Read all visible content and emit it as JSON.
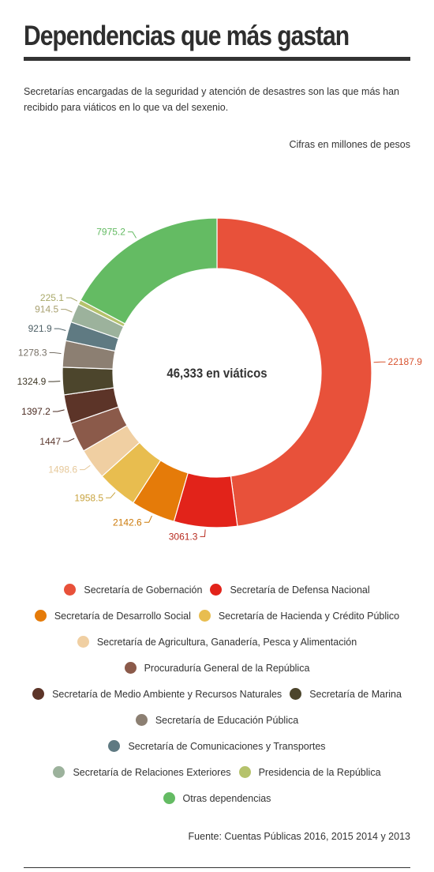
{
  "header": {
    "title": "Dependencias que más gastan",
    "subtitle": "Secretarías encargadas de la seguridad y atención de desastres son las que más han recibido para viáticos en lo que va del sexenio.",
    "units": "Cifras en millones de pesos"
  },
  "chart_data": {
    "type": "pie",
    "variant": "donut",
    "center_label": "46,333 en viáticos",
    "labels_on_outside": true,
    "legend_position": "bottom",
    "series": [
      {
        "name": "Secretaría de Gobernación",
        "value": 22187.9,
        "label": "22187.9",
        "color": "#e8513a"
      },
      {
        "name": "Secretaría de Defensa Nacional",
        "value": 3061.3,
        "label": "3061.3",
        "color": "#e2231a"
      },
      {
        "name": "Secretaría de Desarrollo Social",
        "value": 2142.6,
        "label": "2142.6",
        "color": "#e57b09"
      },
      {
        "name": "Secretaría de Hacienda y Crédito Público",
        "value": 1958.5,
        "label": "1958.5",
        "color": "#e8bd4f"
      },
      {
        "name": "Secretaría de Agricultura, Ganadería, Pesca y Alimentación",
        "value": 1498.6,
        "label": "1498.6",
        "color": "#f0cfa2"
      },
      {
        "name": "Procuraduría General de la República",
        "value": 1447,
        "label": "1447",
        "color": "#8b5a4a"
      },
      {
        "name": "Secretaría de Medio Ambiente y Recursos Naturales",
        "value": 1397.2,
        "label": "1397.2",
        "color": "#5c3428"
      },
      {
        "name": "Secretaría de Marina",
        "value": 1324.9,
        "label": "1324.9",
        "color": "#4c452c"
      },
      {
        "name": "Secretaría de Educación Pública",
        "value": 1278.3,
        "label": "1278.3",
        "color": "#8c7f72"
      },
      {
        "name": "Secretaría de Comunicaciones y Transportes",
        "value": 921.9,
        "label": "921.9",
        "color": "#5f7a82"
      },
      {
        "name": "Secretaría de Relaciones Exteriores",
        "value": 914.5,
        "label": "914.5",
        "color": "#9cb29c"
      },
      {
        "name": "Presidencia de la República",
        "value": 225.1,
        "label": "225.1",
        "color": "#b5c26c"
      },
      {
        "name": "Otras dependencias",
        "value": 7975.2,
        "label": "7975.2",
        "color": "#64bb63"
      }
    ],
    "label_colors": [
      "#d8532f",
      "#b72a1e",
      "#cc7a0a",
      "#c8a33e",
      "#e6c89a",
      "#5d3a30",
      "#4a2a20",
      "#3f3826",
      "#777066",
      "#4e6066",
      "#a8a070",
      "#a8a868",
      "#64bb63"
    ],
    "legend_rows": [
      [
        0,
        1
      ],
      [
        2,
        3
      ],
      [
        4
      ],
      [
        5
      ],
      [
        6,
        7
      ],
      [
        8
      ],
      [
        9
      ],
      [
        10,
        11
      ],
      [
        12
      ]
    ]
  },
  "footer": {
    "source": "Fuente: Cuentas Públicas 2016, 2015 2014 y 2013"
  }
}
